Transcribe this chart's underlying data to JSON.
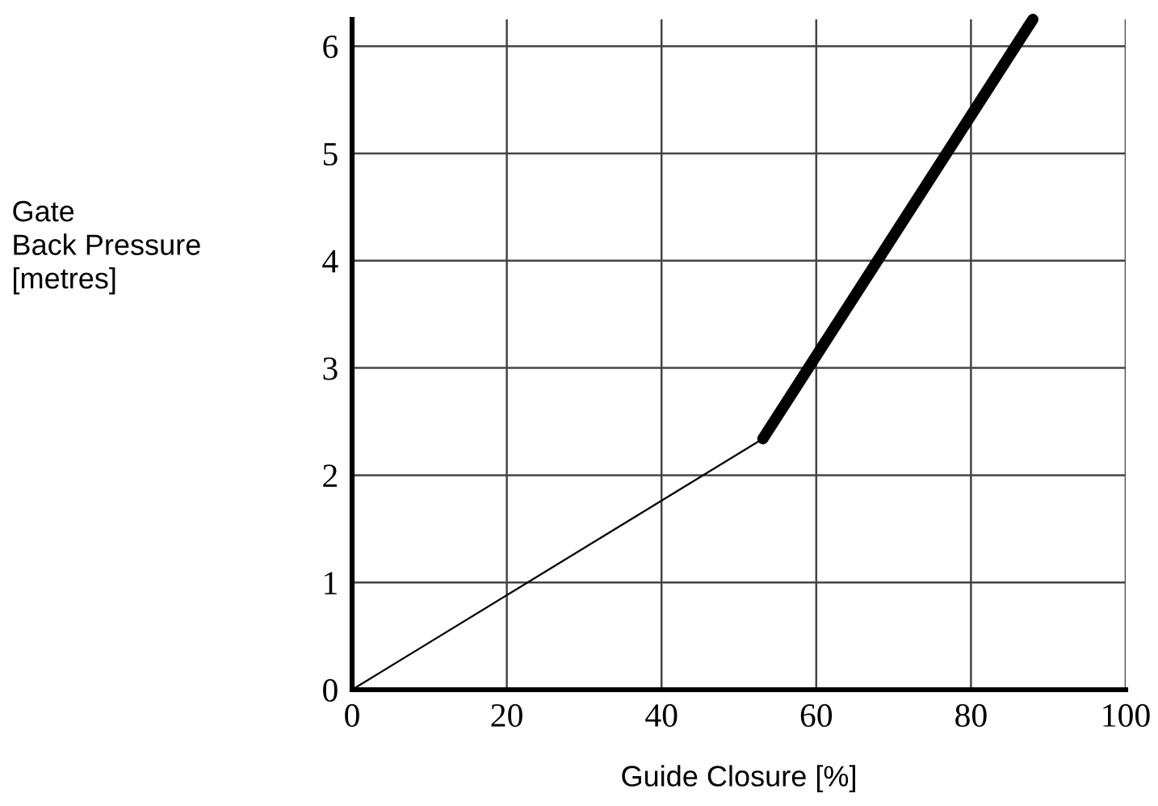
{
  "chart_data": {
    "type": "line",
    "xlabel": "Guide Closure [%]",
    "ylabel": "Gate\nBack Pressure\n[metres]",
    "series": [
      {
        "color": "#000000",
        "x": [
          0,
          53.1
        ],
        "values": [
          0,
          2.34
        ]
      },
      {
        "color": "#000000",
        "x": [
          53.1,
          88
        ],
        "values": [
          2.34,
          6.25
        ]
      }
    ],
    "xlim": [
      0,
      100
    ],
    "ylim": [
      0,
      6.25
    ],
    "xticks": [
      0,
      20,
      40,
      60,
      80,
      100
    ],
    "yticks": [
      0,
      1,
      2,
      3,
      4,
      5,
      6
    ],
    "grid": true
  }
}
